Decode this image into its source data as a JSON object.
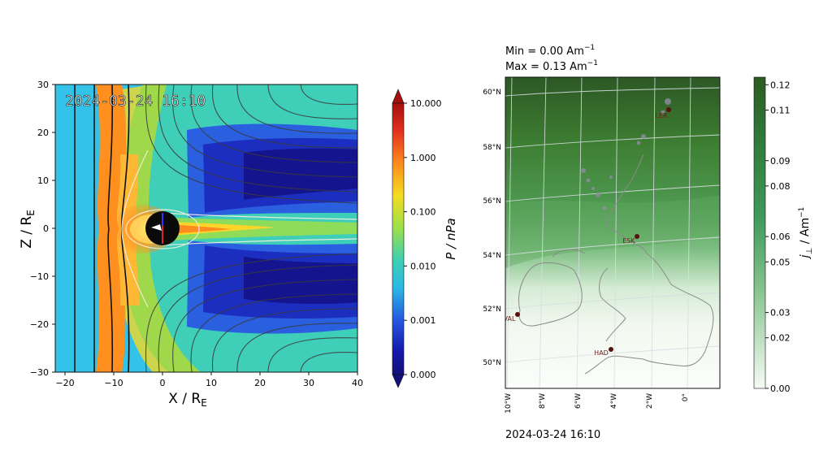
{
  "left_panel": {
    "timestamp": "2024-03-24 16:10",
    "xlabel": "X / R",
    "xlabel_sub": "E",
    "ylabel": "Z / R",
    "ylabel_sub": "E",
    "x_ticks": [
      "−20",
      "−10",
      "0",
      "10",
      "20",
      "30",
      "40"
    ],
    "y_ticks": [
      "30",
      "20",
      "10",
      "0",
      "−10",
      "−20",
      "−30"
    ]
  },
  "left_colorbar": {
    "label": "P / nPa",
    "ticks": [
      "10.000",
      "1.000",
      "0.100",
      "0.010",
      "0.001",
      "0.000"
    ]
  },
  "right_panel": {
    "min_text": "Min = 0.00 Am",
    "max_text": "Max = 0.13 Am",
    "unit_exp": "−1",
    "timestamp": "2024-03-24 16:10",
    "lat_ticks": [
      "60°N",
      "58°N",
      "56°N",
      "54°N",
      "52°N",
      "50°N"
    ],
    "lon_ticks": [
      "10°W",
      "8°W",
      "6°W",
      "4°W",
      "2°W",
      "0°"
    ],
    "stations": [
      "LER",
      "ESK",
      "VAL",
      "HAD"
    ]
  },
  "right_colorbar": {
    "label": "j",
    "label_sub": "⊥",
    "label_unit": " / Am",
    "label_exp": "−1",
    "ticks": [
      "0.12",
      "0.11",
      "0.09",
      "0.08",
      "0.06",
      "0.05",
      "0.03",
      "0.02",
      "0.00"
    ]
  },
  "colors": {
    "bg_cyan": "#33c2e8",
    "shell_orange": "#ff8f1f",
    "lobe_blue": "#1432c8",
    "green_dark": "#2e5e25",
    "green_light": "#eef7ec"
  },
  "chart_data": [
    {
      "type": "heatmap",
      "title": "2024-03-24 16:10",
      "xlabel": "X / R_E",
      "ylabel": "Z / R_E",
      "xlim": [
        -22,
        40
      ],
      "ylim": [
        -30,
        30
      ],
      "colorbar": {
        "label": "P / nPa",
        "scale": "log",
        "ticks": [
          10.0,
          1.0,
          0.1,
          0.01,
          0.001,
          0.0
        ]
      }
    },
    {
      "type": "heatmap",
      "title": "2024-03-24 16:10",
      "annotations": [
        "Min = 0.00 Am−1",
        "Max = 0.13 Am−1"
      ],
      "lat_range": [
        49.5,
        60.5
      ],
      "lon_range": [
        -10,
        0
      ],
      "stations": [
        "LER",
        "ESK",
        "VAL",
        "HAD"
      ],
      "colorbar": {
        "label": "j⊥ / Am−1",
        "range": [
          0.0,
          0.123
        ],
        "ticks": [
          0.12,
          0.11,
          0.09,
          0.08,
          0.06,
          0.05,
          0.03,
          0.02,
          0.0
        ]
      }
    }
  ]
}
